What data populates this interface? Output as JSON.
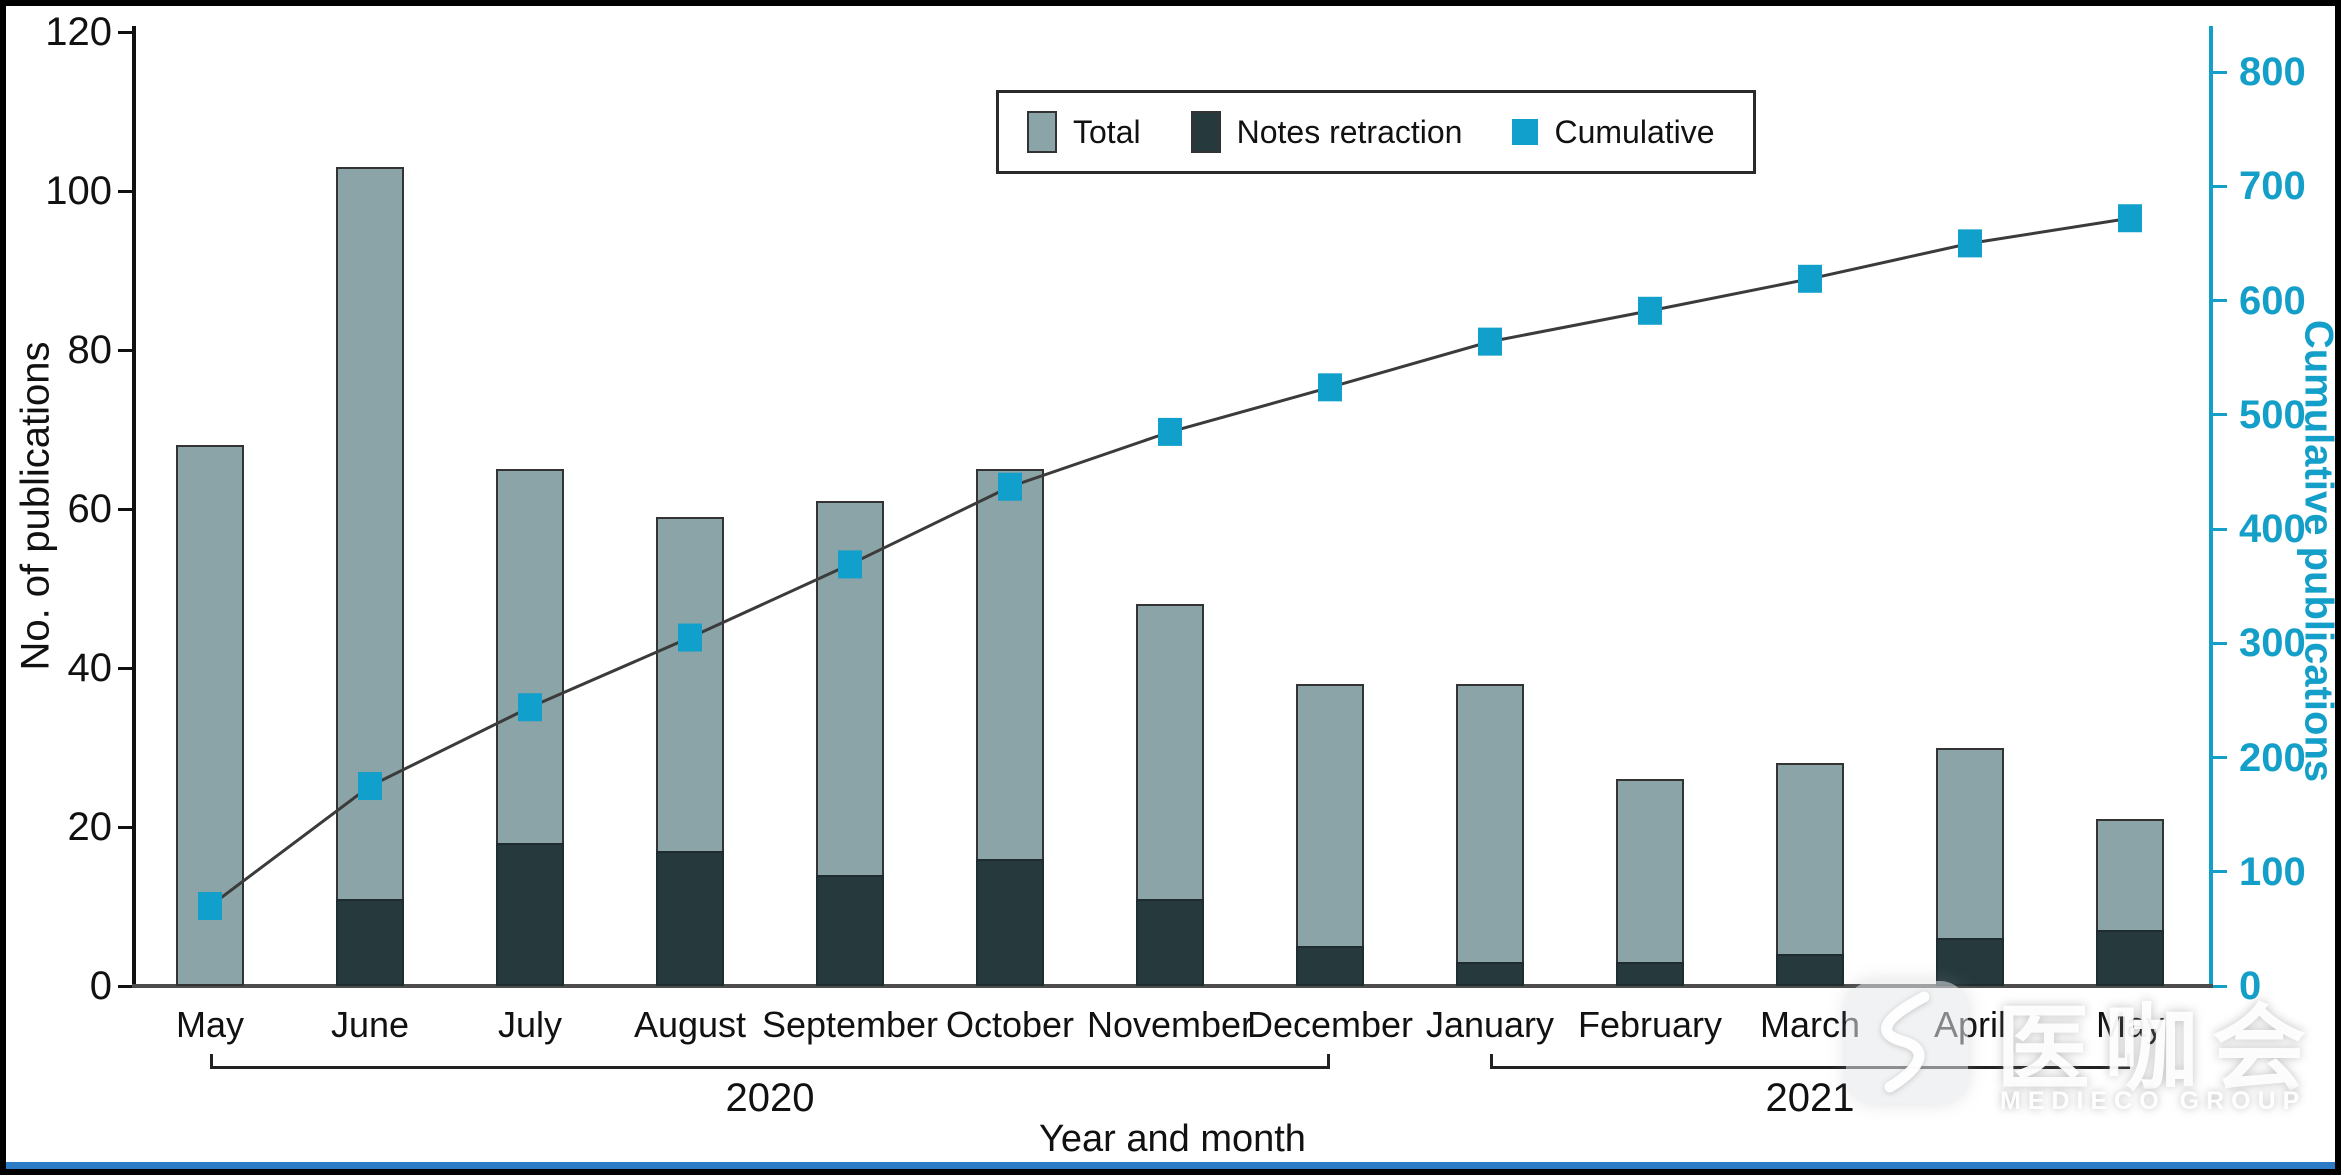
{
  "chart_data": {
    "type": "bar+line",
    "title": "",
    "xlabel": "Year and month",
    "ylabel_left": "No. of publications",
    "ylabel_right": "Cumulative publications",
    "y_left": {
      "min": 0,
      "max": 120,
      "step": 20
    },
    "y_right": {
      "min": 0,
      "max": 800,
      "step": 100
    },
    "grid": false,
    "legend_position": "top-center",
    "categories": [
      "May",
      "June",
      "July",
      "August",
      "September",
      "October",
      "November",
      "December",
      "January",
      "February",
      "March",
      "April",
      "May"
    ],
    "year_groups": [
      {
        "label": "2020",
        "from": 0,
        "to": 7
      },
      {
        "label": "2021",
        "from": 8,
        "to": 12
      }
    ],
    "series": [
      {
        "name": "Total",
        "type": "bar",
        "axis": "left",
        "color": "#8BA4A7",
        "values": [
          68,
          103,
          65,
          59,
          61,
          65,
          48,
          38,
          38,
          26,
          28,
          30,
          21
        ]
      },
      {
        "name": "Notes retraction",
        "type": "bar",
        "axis": "left",
        "color": "#263A3E",
        "values": [
          0,
          11,
          18,
          17,
          14,
          16,
          11,
          5,
          3,
          3,
          4,
          6,
          7
        ]
      },
      {
        "name": "Cumulative",
        "type": "line",
        "axis": "right",
        "color": "#119FCB",
        "values": [
          70,
          175,
          244,
          305,
          369,
          437,
          485,
          524,
          564,
          591,
          619,
          650,
          672
        ]
      }
    ]
  },
  "colors": {
    "axis_left": "#111111",
    "axis_bottom": "#4D4D4D",
    "axis_right": "#149FC9",
    "line": "#3B3B3B",
    "bar_border": "#333333",
    "bracket": "#222222"
  },
  "watermark": {
    "text": "医咖会",
    "subtext": "MEDIECO GROUP"
  }
}
